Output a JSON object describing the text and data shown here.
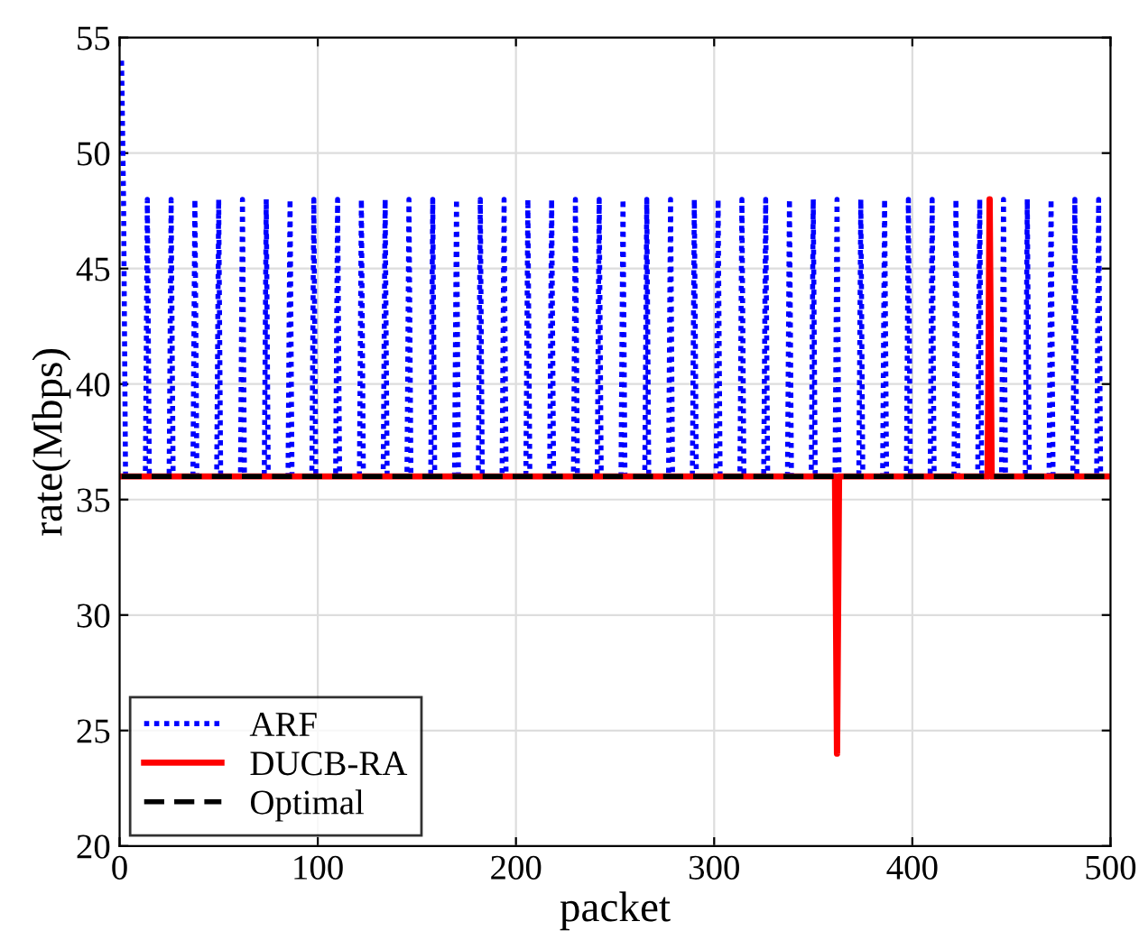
{
  "chart_data": {
    "type": "line",
    "xlabel": "packet",
    "ylabel": "rate(Mbps)",
    "xlim": [
      0,
      500
    ],
    "xticks": [
      0,
      100,
      200,
      300,
      400,
      500
    ],
    "ylim": [
      20,
      55
    ],
    "yticks": [
      20,
      25,
      30,
      35,
      40,
      45,
      50,
      55
    ],
    "grid": true,
    "legend": "bottom left",
    "series": [
      {
        "name": "ARF",
        "color": "#0000ff",
        "line_style": "dotted",
        "x": [
          1,
          2,
          3,
          13,
          14,
          15,
          25,
          26,
          27,
          37,
          38,
          39,
          49,
          50,
          51,
          61,
          62,
          63,
          73,
          74,
          75,
          85,
          86,
          87,
          97,
          98,
          99,
          109,
          110,
          111,
          121,
          122,
          123,
          133,
          134,
          135,
          145,
          146,
          147,
          157,
          158,
          159,
          169,
          170,
          171,
          181,
          182,
          183,
          193,
          194,
          195,
          205,
          206,
          207,
          217,
          218,
          219,
          229,
          230,
          231,
          241,
          242,
          243,
          253,
          254,
          255,
          265,
          266,
          267,
          277,
          278,
          279,
          289,
          290,
          291,
          301,
          302,
          303,
          313,
          314,
          315,
          325,
          326,
          327,
          337,
          338,
          339,
          349,
          350,
          351,
          361,
          362,
          363,
          373,
          374,
          375,
          385,
          386,
          387,
          397,
          398,
          399,
          409,
          410,
          411,
          421,
          422,
          423,
          433,
          434,
          435,
          445,
          446,
          447,
          457,
          458,
          459,
          469,
          470,
          471,
          481,
          482,
          483,
          493,
          494,
          495,
          500
        ],
        "values": [
          54,
          48,
          36,
          36,
          48,
          36,
          36,
          48,
          36,
          36,
          48,
          36,
          36,
          48,
          36,
          36,
          48,
          36,
          36,
          48,
          36,
          36,
          48,
          36,
          36,
          48,
          36,
          36,
          48,
          36,
          36,
          48,
          36,
          36,
          48,
          36,
          36,
          48,
          36,
          36,
          48,
          36,
          36,
          48,
          36,
          36,
          48,
          36,
          36,
          48,
          36,
          36,
          48,
          36,
          36,
          48,
          36,
          36,
          48,
          36,
          36,
          48,
          36,
          36,
          48,
          36,
          36,
          48,
          36,
          36,
          48,
          36,
          36,
          48,
          36,
          36,
          48,
          36,
          36,
          48,
          36,
          36,
          48,
          36,
          36,
          48,
          36,
          36,
          48,
          36,
          36,
          48,
          36,
          36,
          48,
          36,
          36,
          48,
          36,
          36,
          48,
          36,
          36,
          48,
          36,
          36,
          48,
          36,
          36,
          48,
          36,
          36,
          48,
          36,
          36,
          48,
          36,
          36,
          48,
          36,
          36,
          48,
          36,
          36,
          48,
          36,
          36
        ]
      },
      {
        "name": "DUCB-RA",
        "color": "#ff0000",
        "line_style": "solid",
        "x": [
          1,
          361,
          362,
          363,
          438,
          439,
          440,
          500
        ],
        "values": [
          36,
          36,
          24,
          36,
          36,
          48,
          36,
          36
        ]
      },
      {
        "name": "Optimal",
        "color": "#000000",
        "line_style": "dashed",
        "x": [
          1,
          500
        ],
        "values": [
          36,
          36
        ]
      }
    ]
  }
}
